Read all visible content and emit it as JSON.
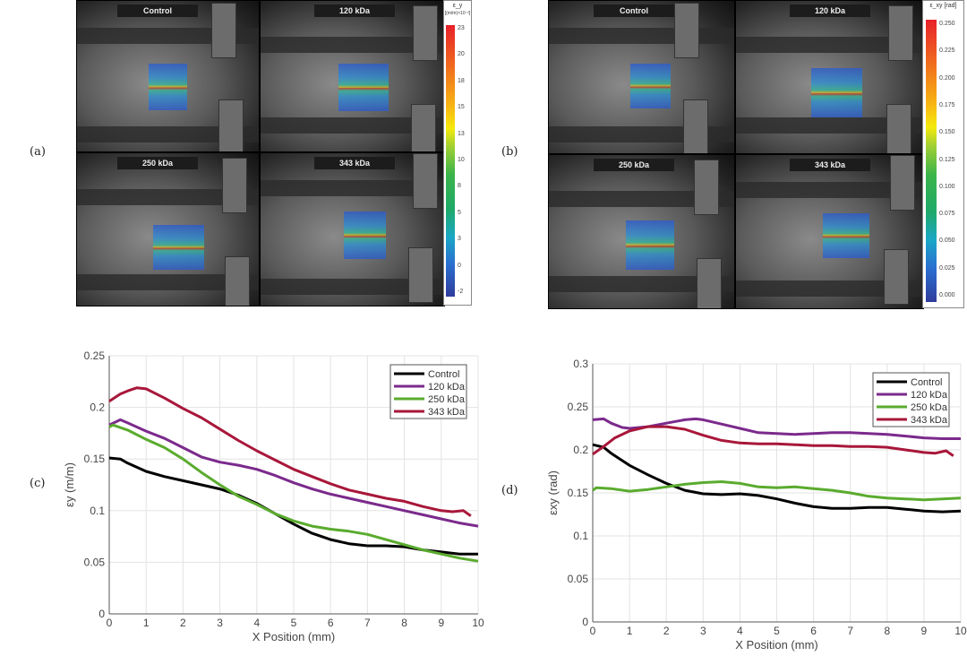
{
  "panel_labels": [
    "(a)",
    "(b)",
    "(c)",
    "(d)"
  ],
  "panel_a": {
    "images": [
      "Control",
      "120 kDa",
      "250 kDa",
      "343 kDa"
    ],
    "colorbar": {
      "title": "ε_y",
      "unit": "[(m/m)×10⁻²]",
      "ticks": [
        "23",
        "20",
        "18",
        "15",
        "13",
        "10",
        "8",
        "5",
        "3",
        "0",
        "-2"
      ]
    }
  },
  "panel_b": {
    "images": [
      "Control",
      "120 kDa",
      "250 kDa",
      "343 kDa"
    ],
    "colorbar": {
      "title": "ε_xy [rad]",
      "ticks": [
        "0.250",
        "0.225",
        "0.200",
        "0.175",
        "0.150",
        "0.125",
        "0.100",
        "0.075",
        "0.050",
        "0.025",
        "0.000"
      ]
    }
  },
  "chart_data": [
    {
      "type": "line",
      "title": "",
      "xlabel": "X Position (mm)",
      "ylabel": "εy (m/m)",
      "xlim": [
        0,
        10
      ],
      "ylim": [
        0,
        0.25
      ],
      "xticks": [
        "0",
        "1",
        "2",
        "3",
        "4",
        "5",
        "6",
        "7",
        "8",
        "9",
        "10"
      ],
      "yticks": [
        "0",
        "0.05",
        "0.1",
        "0.15",
        "0.2",
        "0.25"
      ],
      "grid": true,
      "legend": "top-right",
      "series": [
        {
          "name": "Control",
          "color": "#000000",
          "x": [
            0,
            0.3,
            0.5,
            1,
            1.5,
            2,
            2.5,
            3,
            3.5,
            4,
            4.5,
            5,
            5.5,
            6,
            6.5,
            7,
            7.5,
            8,
            8.5,
            9,
            9.5,
            10
          ],
          "y": [
            0.151,
            0.15,
            0.146,
            0.138,
            0.133,
            0.129,
            0.125,
            0.121,
            0.115,
            0.107,
            0.097,
            0.087,
            0.078,
            0.072,
            0.068,
            0.066,
            0.066,
            0.065,
            0.062,
            0.06,
            0.058,
            0.058
          ]
        },
        {
          "name": "120 kDa",
          "color": "#7b2a8c",
          "x": [
            0,
            0.3,
            0.5,
            1,
            1.5,
            2,
            2.5,
            3,
            3.5,
            4,
            4.5,
            5,
            5.5,
            6,
            6.5,
            7,
            7.5,
            8,
            8.5,
            9,
            9.5,
            10
          ],
          "y": [
            0.183,
            0.188,
            0.185,
            0.177,
            0.17,
            0.161,
            0.152,
            0.147,
            0.144,
            0.14,
            0.134,
            0.127,
            0.121,
            0.116,
            0.112,
            0.108,
            0.104,
            0.1,
            0.096,
            0.092,
            0.088,
            0.085
          ]
        },
        {
          "name": "250 kDa",
          "color": "#5aab2e",
          "x": [
            0,
            0.1,
            0.5,
            1,
            1.5,
            2,
            2.5,
            3,
            3.5,
            4,
            4.5,
            5,
            5.5,
            6,
            6.5,
            7,
            7.5,
            8,
            8.5,
            9,
            9.5,
            10
          ],
          "y": [
            0.181,
            0.183,
            0.178,
            0.169,
            0.161,
            0.15,
            0.137,
            0.125,
            0.114,
            0.106,
            0.097,
            0.09,
            0.085,
            0.082,
            0.08,
            0.077,
            0.072,
            0.067,
            0.062,
            0.058,
            0.054,
            0.051
          ]
        },
        {
          "name": "343 kDa",
          "color": "#a8173a",
          "x": [
            0,
            0.3,
            0.5,
            0.75,
            1,
            1.5,
            2,
            2.5,
            3,
            3.5,
            4,
            4.5,
            5,
            5.5,
            6,
            6.5,
            7,
            7.5,
            8,
            8.5,
            9,
            9.3,
            9.6,
            9.8
          ],
          "y": [
            0.206,
            0.213,
            0.216,
            0.219,
            0.218,
            0.209,
            0.199,
            0.19,
            0.179,
            0.168,
            0.158,
            0.149,
            0.14,
            0.133,
            0.126,
            0.12,
            0.116,
            0.112,
            0.109,
            0.104,
            0.1,
            0.099,
            0.1,
            0.095
          ]
        }
      ]
    },
    {
      "type": "line",
      "title": "",
      "xlabel": "X Position (mm)",
      "ylabel": "εxy (rad)",
      "xlim": [
        0,
        10
      ],
      "ylim": [
        0,
        0.3
      ],
      "xticks": [
        "0",
        "1",
        "2",
        "3",
        "4",
        "5",
        "6",
        "7",
        "8",
        "9",
        "10"
      ],
      "yticks": [
        "0",
        "0.05",
        "0.1",
        "0.15",
        "0.2",
        "0.25",
        "0.3"
      ],
      "grid": true,
      "legend": "top-right",
      "series": [
        {
          "name": "Control",
          "color": "#000000",
          "x": [
            0,
            0.3,
            0.5,
            1,
            1.5,
            2,
            2.5,
            3,
            3.5,
            4,
            4.5,
            5,
            5.5,
            6,
            6.5,
            7,
            7.5,
            8,
            8.5,
            9,
            9.5,
            10
          ],
          "y": [
            0.206,
            0.203,
            0.196,
            0.182,
            0.171,
            0.161,
            0.153,
            0.149,
            0.148,
            0.149,
            0.147,
            0.143,
            0.138,
            0.134,
            0.132,
            0.132,
            0.133,
            0.133,
            0.131,
            0.129,
            0.128,
            0.129
          ]
        },
        {
          "name": "120 kDa",
          "color": "#7b2a8c",
          "x": [
            0,
            0.3,
            0.5,
            0.8,
            1,
            1.5,
            2,
            2.5,
            2.8,
            3,
            3.5,
            4,
            4.5,
            5,
            5.5,
            6,
            6.5,
            7,
            7.5,
            8,
            8.5,
            9,
            9.5,
            10
          ],
          "y": [
            0.235,
            0.236,
            0.231,
            0.226,
            0.225,
            0.227,
            0.231,
            0.235,
            0.236,
            0.235,
            0.23,
            0.225,
            0.22,
            0.219,
            0.218,
            0.219,
            0.22,
            0.22,
            0.219,
            0.218,
            0.216,
            0.214,
            0.213,
            0.213
          ]
        },
        {
          "name": "250 kDa",
          "color": "#5aab2e",
          "x": [
            0,
            0.1,
            0.5,
            1,
            1.5,
            2,
            2.5,
            3,
            3.5,
            4,
            4.5,
            5,
            5.5,
            6,
            6.5,
            7,
            7.5,
            8,
            8.5,
            9,
            9.5,
            10
          ],
          "y": [
            0.153,
            0.156,
            0.155,
            0.152,
            0.154,
            0.157,
            0.16,
            0.162,
            0.163,
            0.161,
            0.157,
            0.156,
            0.157,
            0.155,
            0.153,
            0.15,
            0.146,
            0.144,
            0.143,
            0.142,
            0.143,
            0.144
          ]
        },
        {
          "name": "343 kDa",
          "color": "#a8173a",
          "x": [
            0,
            0.3,
            0.6,
            1,
            1.5,
            2,
            2.5,
            3,
            3.5,
            4,
            4.5,
            5,
            5.5,
            6,
            6.5,
            7,
            7.5,
            8,
            8.5,
            9,
            9.3,
            9.6,
            9.8
          ],
          "y": [
            0.195,
            0.204,
            0.214,
            0.222,
            0.227,
            0.227,
            0.224,
            0.217,
            0.211,
            0.208,
            0.207,
            0.207,
            0.206,
            0.205,
            0.205,
            0.204,
            0.204,
            0.203,
            0.2,
            0.197,
            0.196,
            0.199,
            0.193
          ]
        }
      ]
    }
  ]
}
